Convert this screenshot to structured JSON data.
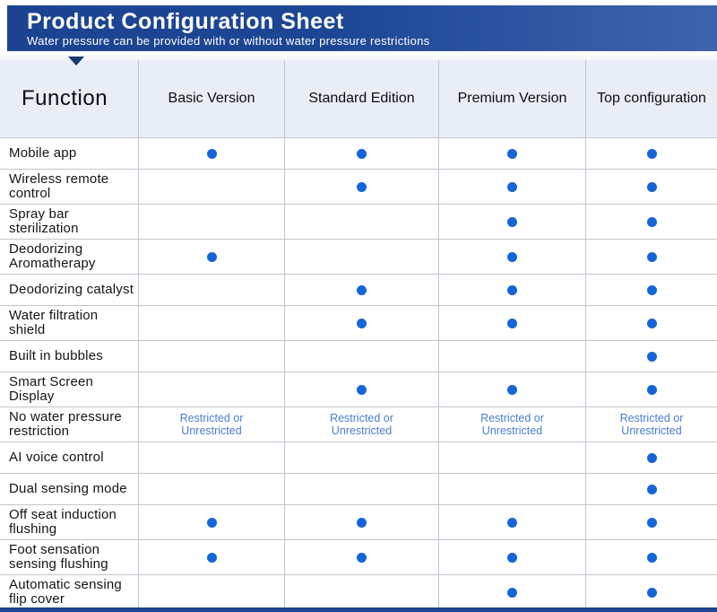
{
  "banner": {
    "title": "Product Configuration Sheet",
    "subtitle": "Water pressure can be provided with or without water pressure restrictions"
  },
  "table": {
    "columns": [
      "Function",
      "Basic Version",
      "Standard Edition",
      "Premium Version",
      "Top configuration"
    ],
    "restricted_label": "Restricted or\nUnrestricted",
    "rows": [
      {
        "label": "Mobile app",
        "cells": [
          "dot",
          "dot",
          "dot",
          "dot"
        ]
      },
      {
        "label": "Wireless remote control",
        "cells": [
          "",
          "dot",
          "dot",
          "dot"
        ]
      },
      {
        "label": "Spray bar sterilization",
        "cells": [
          "",
          "",
          "dot",
          "dot"
        ]
      },
      {
        "label": "Deodorizing Aromatherapy",
        "cells": [
          "dot",
          "",
          "dot",
          "dot"
        ]
      },
      {
        "label": "Deodorizing catalyst",
        "cells": [
          "",
          "dot",
          "dot",
          "dot"
        ]
      },
      {
        "label": "Water filtration shield",
        "cells": [
          "",
          "dot",
          "dot",
          "dot"
        ]
      },
      {
        "label": "Built in bubbles",
        "cells": [
          "",
          "",
          "",
          "dot"
        ]
      },
      {
        "label": "Smart Screen Display",
        "cells": [
          "",
          "dot",
          "dot",
          "dot"
        ]
      },
      {
        "label": "No water pressure restriction",
        "cells": [
          "restricted",
          "restricted",
          "restricted",
          "restricted"
        ]
      },
      {
        "label": "AI voice control",
        "cells": [
          "",
          "",
          "",
          "dot"
        ]
      },
      {
        "label": "Dual sensing mode",
        "cells": [
          "",
          "",
          "",
          "dot"
        ]
      },
      {
        "label": "Off seat induction flushing",
        "cells": [
          "dot",
          "dot",
          "dot",
          "dot"
        ]
      },
      {
        "label": "Foot sensation sensing flushing",
        "cells": [
          "dot",
          "dot",
          "dot",
          "dot"
        ]
      },
      {
        "label": "Automatic sensing flip cover",
        "cells": [
          "",
          "",
          "dot",
          "dot"
        ]
      }
    ]
  },
  "colors": {
    "banner_left": "#1b4391",
    "banner_right": "#3d64ad",
    "banner_text": "#ffffff",
    "pointer": "#16386f",
    "header_bg": "#e8edf6",
    "border": "#c0c5cf",
    "dot": "#1565d8",
    "restricted_text": "#4b7ed0",
    "label_text": "#141414",
    "bottom_bar": "#1e4493"
  }
}
